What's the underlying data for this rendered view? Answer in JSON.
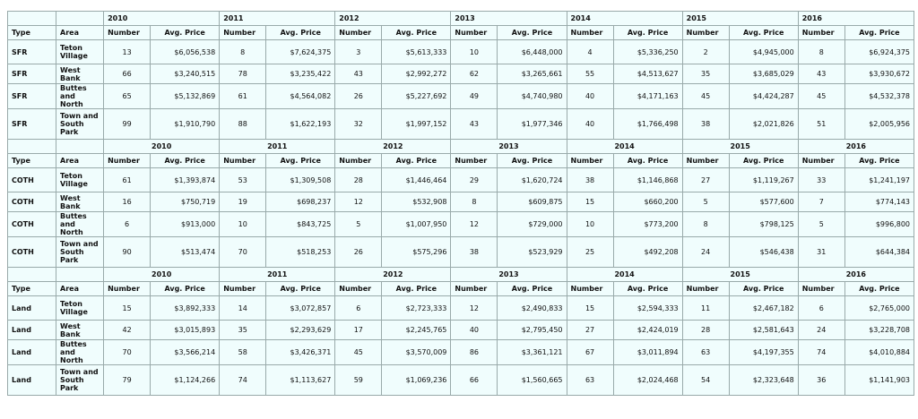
{
  "sections": [
    {
      "years": [
        2010,
        2011,
        2012,
        2013,
        2014,
        2015,
        2016
      ],
      "headers": {
        "type": "Type",
        "area": "Area",
        "number": "Number",
        "price": "Avg. Price"
      },
      "rows": [
        {
          "type": "SFR",
          "area": "Teton Village",
          "cells": [
            [
              13,
              "$6,056,538"
            ],
            [
              8,
              "$7,624,375"
            ],
            [
              3,
              "$5,613,333"
            ],
            [
              10,
              "$6,448,000"
            ],
            [
              4,
              "$5,336,250"
            ],
            [
              2,
              "$4,945,000"
            ],
            [
              8,
              "$6,924,375"
            ]
          ]
        },
        {
          "type": "SFR",
          "area": "West Bank",
          "cells": [
            [
              66,
              "$3,240,515"
            ],
            [
              78,
              "$3,235,422"
            ],
            [
              43,
              "$2,992,272"
            ],
            [
              62,
              "$3,265,661"
            ],
            [
              55,
              "$4,513,627"
            ],
            [
              35,
              "$3,685,029"
            ],
            [
              43,
              "$3,930,672"
            ]
          ]
        },
        {
          "type": "SFR",
          "area": "Buttes and North",
          "cells": [
            [
              65,
              "$5,132,869"
            ],
            [
              61,
              "$4,564,082"
            ],
            [
              26,
              "$5,227,692"
            ],
            [
              49,
              "$4,740,980"
            ],
            [
              40,
              "$4,171,163"
            ],
            [
              45,
              "$4,424,287"
            ],
            [
              45,
              "$4,532,378"
            ]
          ]
        },
        {
          "type": "SFR",
          "area": "Town and South Park",
          "cells": [
            [
              99,
              "$1,910,790"
            ],
            [
              88,
              "$1,622,193"
            ],
            [
              32,
              "$1,997,152"
            ],
            [
              43,
              "$1,977,346"
            ],
            [
              40,
              "$1,766,498"
            ],
            [
              38,
              "$2,021,826"
            ],
            [
              51,
              "$2,005,956"
            ]
          ]
        }
      ]
    },
    {
      "years": [
        2010,
        2011,
        2012,
        2013,
        2014,
        2015,
        2016
      ],
      "headers": {
        "type": "Type",
        "area": "Area",
        "number": "Number",
        "price": "Avg. Price"
      },
      "rows": [
        {
          "type": "COTH",
          "area": "Teton Village",
          "cells": [
            [
              61,
              "$1,393,874"
            ],
            [
              53,
              "$1,309,508"
            ],
            [
              28,
              "$1,446,464"
            ],
            [
              29,
              "$1,620,724"
            ],
            [
              38,
              "$1,146,868"
            ],
            [
              27,
              "$1,119,267"
            ],
            [
              33,
              "$1,241,197"
            ]
          ]
        },
        {
          "type": "COTH",
          "area": "West Bank",
          "cells": [
            [
              16,
              "$750,719"
            ],
            [
              19,
              "$698,237"
            ],
            [
              12,
              "$532,908"
            ],
            [
              8,
              "$609,875"
            ],
            [
              15,
              "$660,200"
            ],
            [
              5,
              "$577,600"
            ],
            [
              7,
              "$774,143"
            ]
          ]
        },
        {
          "type": "COTH",
          "area": "Buttes and North",
          "cells": [
            [
              6,
              "$913,000"
            ],
            [
              10,
              "$843,725"
            ],
            [
              5,
              "$1,007,950"
            ],
            [
              12,
              "$729,000"
            ],
            [
              10,
              "$773,200"
            ],
            [
              8,
              "$798,125"
            ],
            [
              5,
              "$996,800"
            ]
          ]
        },
        {
          "type": "COTH",
          "area": "Town and South Park",
          "cells": [
            [
              90,
              "$513,474"
            ],
            [
              70,
              "$518,253"
            ],
            [
              26,
              "$575,296"
            ],
            [
              38,
              "$523,929"
            ],
            [
              25,
              "$492,208"
            ],
            [
              24,
              "$546,438"
            ],
            [
              31,
              "$644,384"
            ]
          ]
        }
      ]
    },
    {
      "years": [
        2010,
        2011,
        2012,
        2013,
        2014,
        2015,
        2016
      ],
      "headers": {
        "type": "Type",
        "area": "Area",
        "number": "Number",
        "price": "Avg. Price"
      },
      "rows": [
        {
          "type": "Land",
          "area": "Teton Village",
          "cells": [
            [
              15,
              "$3,892,333"
            ],
            [
              14,
              "$3,072,857"
            ],
            [
              6,
              "$2,723,333"
            ],
            [
              12,
              "$2,490,833"
            ],
            [
              15,
              "$2,594,333"
            ],
            [
              11,
              "$2,467,182"
            ],
            [
              6,
              "$2,765,000"
            ]
          ]
        },
        {
          "type": "Land",
          "area": "West Bank",
          "cells": [
            [
              42,
              "$3,015,893"
            ],
            [
              35,
              "$2,293,629"
            ],
            [
              17,
              "$2,245,765"
            ],
            [
              40,
              "$2,795,450"
            ],
            [
              27,
              "$2,424,019"
            ],
            [
              28,
              "$2,581,643"
            ],
            [
              24,
              "$3,228,708"
            ]
          ]
        },
        {
          "type": "Land",
          "area": "Buttes and North",
          "cells": [
            [
              70,
              "$3,566,214"
            ],
            [
              58,
              "$3,426,371"
            ],
            [
              45,
              "$3,570,009"
            ],
            [
              86,
              "$3,361,121"
            ],
            [
              67,
              "$3,011,894"
            ],
            [
              63,
              "$4,197,355"
            ],
            [
              74,
              "$4,010,884"
            ]
          ]
        },
        {
          "type": "Land",
          "area": "Town and South Park",
          "cells": [
            [
              79,
              "$1,124,266"
            ],
            [
              74,
              "$1,113,627"
            ],
            [
              59,
              "$1,069,236"
            ],
            [
              66,
              "$1,560,665"
            ],
            [
              63,
              "$2,024,468"
            ],
            [
              54,
              "$2,323,648"
            ],
            [
              36,
              "$1,141,903"
            ]
          ]
        }
      ]
    }
  ]
}
